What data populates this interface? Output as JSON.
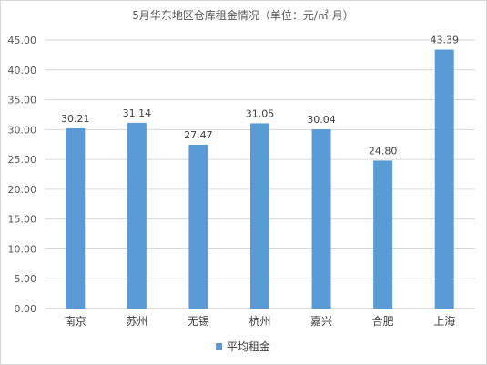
{
  "chart_data": {
    "type": "bar",
    "title": "5月华东地区仓库租金情况（单位：元/㎡·月）",
    "categories": [
      "南京",
      "苏州",
      "无锡",
      "杭州",
      "嘉兴",
      "合肥",
      "上海"
    ],
    "series": [
      {
        "name": "平均租金",
        "values": [
          30.21,
          31.14,
          27.47,
          31.05,
          30.04,
          24.8,
          43.39
        ],
        "labels": [
          "30.21",
          "31.14",
          "27.47",
          "31.05",
          "30.04",
          "24.80",
          "43.39"
        ],
        "color": "#5b9bd5"
      }
    ],
    "ylim": [
      0,
      45
    ],
    "yticks": [
      "0.00",
      "5.00",
      "10.00",
      "15.00",
      "20.00",
      "25.00",
      "30.00",
      "35.00",
      "40.00",
      "45.00"
    ],
    "grid": true,
    "legend_position": "bottom"
  }
}
